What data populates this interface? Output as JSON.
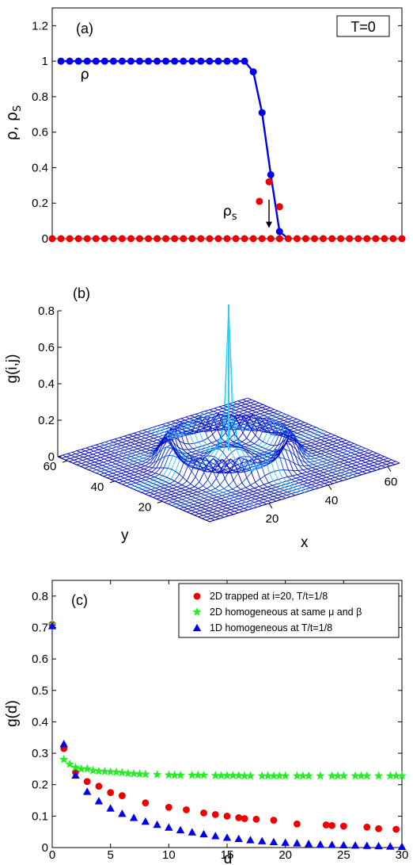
{
  "chart_data": [
    {
      "type": "line",
      "panel_label": "(a)",
      "badge": "T=0",
      "ylabel": "ρ, ρ",
      "ylabel_sub": "S",
      "xlim": [
        0,
        40
      ],
      "ylim": [
        0,
        1.3
      ],
      "yticks": [
        {
          "v": 0,
          "label": "0"
        },
        {
          "v": 0.2,
          "label": "0.2"
        },
        {
          "v": 0.4,
          "label": "0.4"
        },
        {
          "v": 0.6,
          "label": "0.6"
        },
        {
          "v": 0.8,
          "label": "0.8"
        },
        {
          "v": 1.0,
          "label": "1"
        },
        {
          "v": 1.2,
          "label": "1.2"
        }
      ],
      "annotations": [
        {
          "text": "ρ",
          "x": 3.2,
          "y": 0.9
        },
        {
          "text": "ρ",
          "sub": "s",
          "x": 19.5,
          "y": 0.13
        }
      ],
      "arrow": {
        "x": 24.8,
        "y_from": 0.22,
        "y_to": 0.06
      },
      "series": [
        {
          "name": "ρ",
          "color": "#0000ee",
          "x": [
            1,
            2,
            3,
            4,
            5,
            6,
            7,
            8,
            9,
            10,
            11,
            12,
            13,
            14,
            15,
            16,
            17,
            18,
            19,
            20,
            21,
            22,
            23,
            24,
            25,
            26,
            27
          ],
          "y": [
            1,
            1,
            1,
            1,
            1,
            1,
            1,
            1,
            1,
            1,
            1,
            1,
            1,
            1,
            1,
            1,
            1,
            1,
            1,
            1,
            1,
            1,
            0.94,
            0.71,
            0.36,
            0.04,
            0
          ]
        },
        {
          "name": "ρs",
          "color": "#ee0000",
          "x": [
            0,
            1,
            2,
            3,
            4,
            5,
            6,
            7,
            8,
            9,
            10,
            11,
            12,
            13,
            14,
            15,
            16,
            17,
            18,
            19,
            20,
            21,
            22,
            23,
            24,
            25,
            26,
            27,
            28,
            29,
            30,
            31,
            32,
            33,
            34,
            35,
            36,
            37,
            38,
            39,
            40
          ],
          "y": [
            0,
            0,
            0,
            0,
            0,
            0,
            0,
            0,
            0,
            0,
            0,
            0,
            0,
            0,
            0,
            0,
            0,
            0,
            0,
            0,
            0,
            0,
            0,
            0,
            0,
            0,
            0,
            0,
            0,
            0,
            0,
            0,
            0,
            0,
            0,
            0,
            0,
            0,
            0,
            0,
            0
          ]
        },
        {
          "name": "ρs-peak",
          "color": "#ee0000",
          "x": [
            23.7,
            24.8,
            26.0
          ],
          "y": [
            0.21,
            0.32,
            0.18
          ]
        }
      ]
    },
    {
      "type": "surface",
      "panel_label": "(b)",
      "zlabel": "g(i,j)",
      "xlabel": "x",
      "ylabel": "y",
      "zticks": [
        "0",
        "0.2",
        "0.4",
        "0.6",
        "0.8"
      ],
      "zrange": [
        0,
        0.8
      ],
      "xticks": [
        "20",
        "40",
        "60"
      ],
      "yticks": [
        "20",
        "40",
        "60"
      ],
      "grid": 40,
      "peak": 0.72,
      "ring_height": 0.12
    },
    {
      "type": "scatter",
      "panel_label": "(c)",
      "xlabel": "d",
      "ylabel": "g(d)",
      "xlim": [
        0,
        30
      ],
      "ylim": [
        0,
        0.85
      ],
      "xticks": [
        0,
        5,
        10,
        15,
        20,
        25,
        30
      ],
      "yticks": [
        {
          "v": 0,
          "label": "0"
        },
        {
          "v": 0.1,
          "label": "0.1"
        },
        {
          "v": 0.2,
          "label": "0.2"
        },
        {
          "v": 0.3,
          "label": "0.3"
        },
        {
          "v": 0.4,
          "label": "0.4"
        },
        {
          "v": 0.5,
          "label": "0.5"
        },
        {
          "v": 0.6,
          "label": "0.6"
        },
        {
          "v": 0.7,
          "label": "0.7"
        },
        {
          "v": 0.8,
          "label": "0.8"
        }
      ],
      "legend_position": "top-right",
      "series": [
        {
          "name": "2D trapped at i=20, T/t=1/8",
          "marker": "circle",
          "color": "#ee0000",
          "x": [
            0,
            1,
            2,
            3,
            4,
            5,
            6,
            8,
            10,
            11.5,
            13,
            14,
            15,
            16,
            16.5,
            17.5,
            19,
            21,
            23.5,
            24,
            25,
            27,
            28,
            29.5
          ],
          "y": [
            0.71,
            0.315,
            0.24,
            0.21,
            0.195,
            0.175,
            0.165,
            0.142,
            0.128,
            0.12,
            0.11,
            0.105,
            0.1,
            0.095,
            0.092,
            0.09,
            0.087,
            0.075,
            0.072,
            0.07,
            0.068,
            0.065,
            0.06,
            0.058
          ]
        },
        {
          "name": "2D homogeneous at same μ and β",
          "marker": "star",
          "color": "#22ee22",
          "x": [
            0,
            1,
            1.5,
            2,
            2.5,
            3,
            3.5,
            4,
            4.5,
            5,
            5.5,
            6,
            6.5,
            7,
            7.5,
            8,
            9,
            10,
            10.5,
            11,
            12,
            12.5,
            13,
            14,
            14.5,
            15,
            15.5,
            16,
            16.5,
            17,
            18,
            18.5,
            19,
            19.5,
            20,
            21,
            21.5,
            22,
            23,
            24,
            24.5,
            25,
            26,
            26.5,
            27,
            28,
            29,
            29.5,
            30
          ],
          "y": [
            0.71,
            0.28,
            0.265,
            0.255,
            0.25,
            0.25,
            0.245,
            0.243,
            0.242,
            0.241,
            0.24,
            0.238,
            0.236,
            0.235,
            0.234,
            0.233,
            0.232,
            0.231,
            0.23,
            0.23,
            0.23,
            0.23,
            0.23,
            0.229,
            0.229,
            0.229,
            0.229,
            0.229,
            0.228,
            0.228,
            0.228,
            0.228,
            0.228,
            0.228,
            0.228,
            0.228,
            0.228,
            0.228,
            0.228,
            0.228,
            0.228,
            0.228,
            0.228,
            0.228,
            0.228,
            0.228,
            0.228,
            0.228,
            0.228
          ]
        },
        {
          "name": "1D homogeneous at T/t=1/8",
          "marker": "triangle",
          "color": "#0000ee",
          "x": [
            0,
            1,
            2,
            3,
            4,
            5,
            6,
            7,
            8,
            9,
            10,
            11,
            12,
            13,
            14,
            15,
            16,
            17,
            18,
            19,
            20,
            21,
            22,
            23,
            24,
            25,
            26,
            27,
            28,
            29,
            30
          ],
          "y": [
            0.705,
            0.33,
            0.23,
            0.178,
            0.148,
            0.125,
            0.108,
            0.095,
            0.083,
            0.073,
            0.064,
            0.056,
            0.049,
            0.043,
            0.037,
            0.032,
            0.028,
            0.024,
            0.021,
            0.018,
            0.016,
            0.014,
            0.012,
            0.01,
            0.009,
            0.008,
            0.007,
            0.006,
            0.005,
            0.004,
            0.003
          ]
        }
      ]
    }
  ]
}
